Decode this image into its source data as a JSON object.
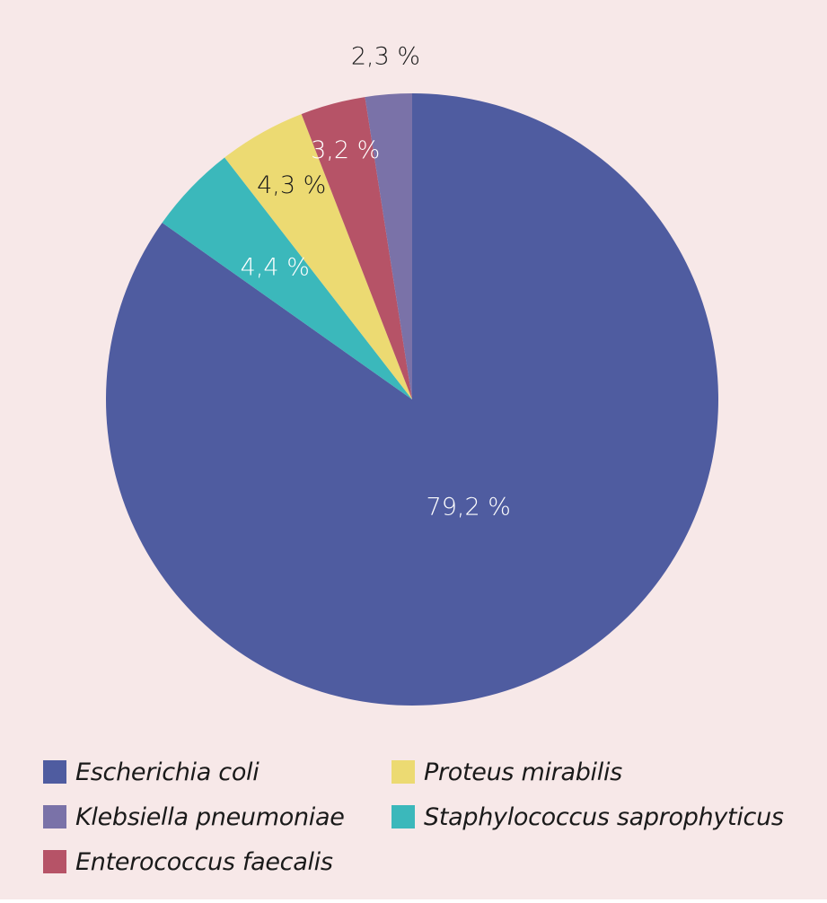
{
  "chart_data": {
    "type": "pie",
    "start_angle_deg": 0,
    "direction": "clockwise",
    "slices": [
      {
        "name": "Escherichia coli",
        "value": 79.2,
        "label": "79,2 %",
        "color": "#4f5ca0",
        "label_color": "#ffffff"
      },
      {
        "name": "Staphylococcus saprophyticus",
        "value": 4.4,
        "label": "4,4 %",
        "color": "#3bb8bb",
        "label_color": "#ffffff"
      },
      {
        "name": "Proteus mirabilis",
        "value": 4.3,
        "label": "4,3 %",
        "color": "#ecda72",
        "label_color": "#1a1a1a"
      },
      {
        "name": "Enterococcus faecalis",
        "value": 3.2,
        "label": "3,2 %",
        "color": "#b65367",
        "label_color": "#ffffff"
      },
      {
        "name": "Klebsiella pneumoniae",
        "value": 2.3,
        "label": "2,3 %",
        "color": "#7a72a8",
        "label_color": "#1a1a1a"
      }
    ],
    "legend": [
      {
        "name": "Escherichia coli",
        "color": "#4f5ca0"
      },
      {
        "name": "Proteus mirabilis",
        "color": "#ecda72"
      },
      {
        "name": "Klebsiella pneumoniae",
        "color": "#7a72a8"
      },
      {
        "name": "Staphylococcus saprophyticus",
        "color": "#3bb8bb"
      },
      {
        "name": "Enterococcus faecalis",
        "color": "#b65367"
      }
    ],
    "legend_placement": "bottom",
    "background": "#f7e8e8"
  }
}
